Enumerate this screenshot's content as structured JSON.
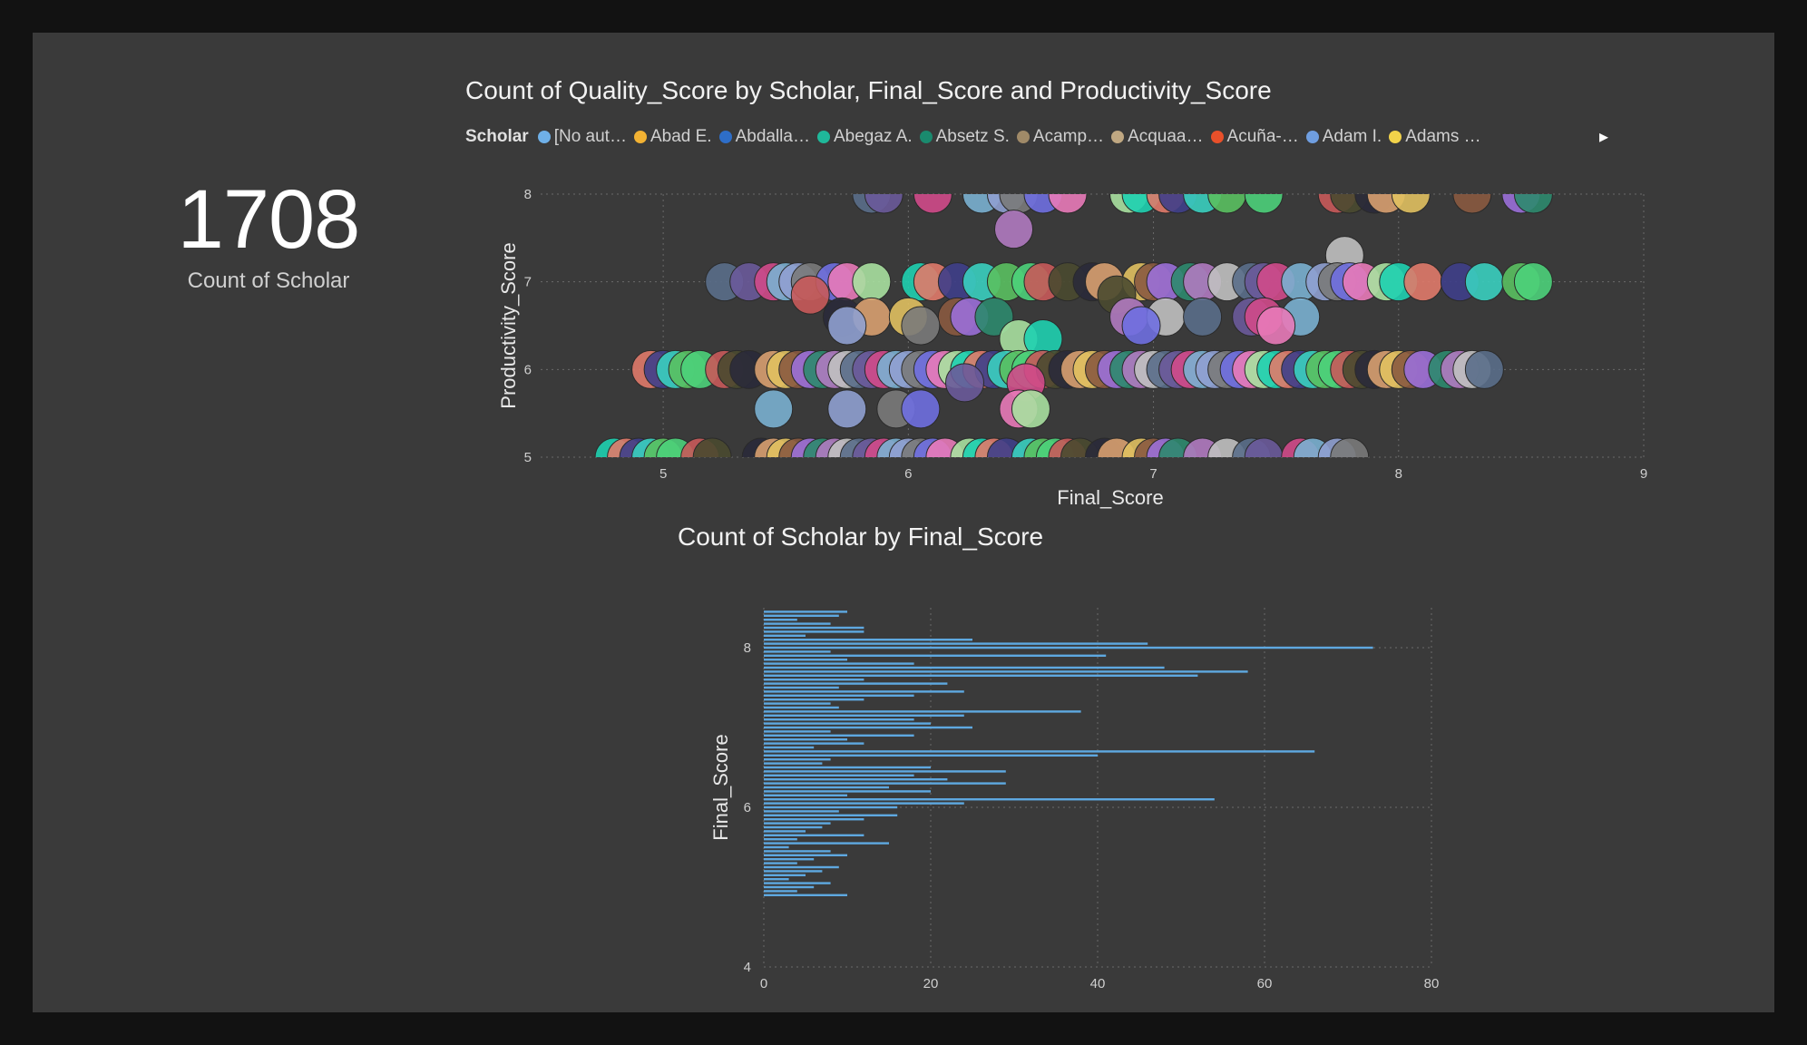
{
  "kpi": {
    "value": "1708",
    "label": "Count of Scholar"
  },
  "scatter": {
    "title": "Count of Quality_Score by Scholar, Final_Score and Productivity_Score",
    "legend_title": "Scholar",
    "legend_items": [
      {
        "label": "[No aut…",
        "color": "#6fb0e8"
      },
      {
        "label": "Abad E.",
        "color": "#f2b233"
      },
      {
        "label": "Abdalla…",
        "color": "#2e6ec8"
      },
      {
        "label": "Abegaz A.",
        "color": "#1fb89a"
      },
      {
        "label": "Absetz S.",
        "color": "#1a8a6e"
      },
      {
        "label": "Acamp…",
        "color": "#a08a68"
      },
      {
        "label": "Acquaa…",
        "color": "#c0a882"
      },
      {
        "label": "Acuña-…",
        "color": "#e8502a"
      },
      {
        "label": "Adam I.",
        "color": "#6f9ee0"
      },
      {
        "label": "Adams …",
        "color": "#f2d34a"
      }
    ],
    "next_icon": "chevron-right-icon"
  },
  "bars": {
    "title": "Count of Scholar by Final_Score"
  },
  "chart_data": [
    {
      "type": "scatter",
      "title": "Count of Quality_Score by Scholar, Final_Score and Productivity_Score",
      "xlabel": "Final_Score",
      "ylabel": "Productivity_Score",
      "xlim": [
        4.5,
        9
      ],
      "ylim": [
        5,
        8
      ],
      "xticks": [
        "5",
        "6",
        "7",
        "8",
        "9"
      ],
      "yticks": [
        "5",
        "6",
        "7",
        "8"
      ],
      "grid": true,
      "legend": "top",
      "palette": [
        "#9a6fd8",
        "#4dd07a",
        "#e87ab8",
        "#5a6e8a",
        "#d8a070",
        "#3f3f8a",
        "#8fa0d0",
        "#2e8a6e",
        "#c85a5a",
        "#a8e0a0",
        "#6a5a9a",
        "#e0c060",
        "#3acfbf",
        "#7a7a7a",
        "#b07ac0",
        "#4a4a30",
        "#1fd0b0",
        "#d04a8a",
        "#8a5a40",
        "#5ac060",
        "#6f6fe0",
        "#c0c0c0",
        "#2a2a3a",
        "#e07a6a",
        "#7ab0d0"
      ],
      "series": [
        {
          "y": 8,
          "x": [
            5.85,
            5.9,
            6.1,
            6.3,
            6.4,
            6.45,
            6.55,
            6.65,
            6.9,
            6.95,
            7.05,
            7.1,
            7.2,
            7.3,
            7.45,
            7.75,
            7.8,
            7.9,
            7.95,
            8.05,
            8.3,
            8.5,
            8.55
          ]
        },
        {
          "y": 7.6,
          "x": [
            6.43
          ]
        },
        {
          "y": 7.3,
          "x": [
            7.78
          ]
        },
        {
          "y": 7,
          "x": [
            5.25,
            5.35,
            5.45,
            5.5,
            5.55,
            5.6,
            5.7,
            5.75,
            5.85,
            6.05,
            6.1,
            6.2,
            6.3,
            6.4,
            6.5,
            6.55,
            6.65,
            6.75,
            6.8,
            6.95,
            7.0,
            7.05,
            7.15,
            7.2,
            7.3,
            7.4,
            7.45,
            7.5,
            7.6,
            7.7,
            7.75,
            7.8,
            7.85,
            7.95,
            8.0,
            8.1,
            8.25,
            8.35,
            8.5,
            8.55
          ]
        },
        {
          "y": 6.85,
          "x": [
            5.6,
            6.85
          ]
        },
        {
          "y": 6.6,
          "x": [
            5.73,
            5.85,
            6.0,
            6.2,
            6.25,
            6.35,
            6.9,
            7.05,
            7.2,
            7.4,
            7.45,
            7.6
          ]
        },
        {
          "y": 6.5,
          "x": [
            5.75,
            6.05,
            6.95,
            7.5
          ]
        },
        {
          "y": 6.35,
          "x": [
            6.45,
            6.55
          ]
        },
        {
          "y": 6,
          "x": [
            4.95,
            5.0,
            5.05,
            5.1,
            5.15,
            5.25,
            5.3,
            5.35,
            5.45,
            5.5,
            5.55,
            5.6,
            5.65,
            5.7,
            5.75,
            5.8,
            5.85,
            5.9,
            5.95,
            6.0,
            6.05,
            6.1,
            6.15,
            6.2,
            6.25,
            6.3,
            6.35,
            6.4,
            6.45,
            6.5,
            6.55,
            6.6,
            6.65,
            6.7,
            6.75,
            6.8,
            6.85,
            6.9,
            6.95,
            7.0,
            7.05,
            7.1,
            7.15,
            7.2,
            7.25,
            7.3,
            7.35,
            7.4,
            7.45,
            7.5,
            7.55,
            7.6,
            7.65,
            7.7,
            7.75,
            7.8,
            7.85,
            7.9,
            7.95,
            8.0,
            8.05,
            8.1,
            8.2,
            8.25,
            8.3,
            8.35
          ]
        },
        {
          "y": 5.85,
          "x": [
            6.23,
            6.48
          ]
        },
        {
          "y": 5.55,
          "x": [
            5.45,
            5.75,
            5.95,
            6.05,
            6.45,
            6.5
          ]
        },
        {
          "y": 5,
          "x": [
            4.8,
            4.85,
            4.9,
            4.95,
            5.0,
            5.05,
            5.15,
            5.2,
            5.4,
            5.45,
            5.5,
            5.55,
            5.6,
            5.65,
            5.7,
            5.75,
            5.8,
            5.85,
            5.9,
            5.95,
            6.0,
            6.05,
            6.1,
            6.15,
            6.25,
            6.3,
            6.35,
            6.4,
            6.5,
            6.55,
            6.6,
            6.65,
            6.7,
            6.8,
            6.85,
            6.95,
            7.0,
            7.05,
            7.1,
            7.2,
            7.3,
            7.4,
            7.45,
            7.6,
            7.65,
            7.75,
            7.8
          ]
        }
      ]
    },
    {
      "type": "bar",
      "orientation": "horizontal",
      "title": "Count of Scholar by Final_Score",
      "xlabel": "Count of Scholar",
      "ylabel": "Final_Score",
      "xlim": [
        0,
        80
      ],
      "ylim": [
        4,
        8.5
      ],
      "xticks": [
        "0",
        "20",
        "40",
        "60",
        "80"
      ],
      "yticks": [
        "4",
        "6",
        "8"
      ],
      "grid": true,
      "bar_color": "#5ea8e0",
      "categories": [
        8.45,
        8.4,
        8.35,
        8.3,
        8.25,
        8.2,
        8.15,
        8.1,
        8.05,
        8.0,
        7.95,
        7.9,
        7.85,
        7.8,
        7.75,
        7.7,
        7.65,
        7.6,
        7.55,
        7.5,
        7.45,
        7.4,
        7.35,
        7.3,
        7.25,
        7.2,
        7.15,
        7.1,
        7.05,
        7.0,
        6.95,
        6.9,
        6.85,
        6.8,
        6.75,
        6.7,
        6.65,
        6.6,
        6.55,
        6.5,
        6.45,
        6.4,
        6.35,
        6.3,
        6.25,
        6.2,
        6.15,
        6.1,
        6.05,
        6.0,
        5.95,
        5.9,
        5.85,
        5.8,
        5.75,
        5.7,
        5.65,
        5.6,
        5.55,
        5.5,
        5.45,
        5.4,
        5.35,
        5.3,
        5.25,
        5.2,
        5.15,
        5.1,
        5.05,
        5.0,
        4.95,
        4.9
      ],
      "values": [
        10,
        9,
        4,
        8,
        12,
        12,
        5,
        25,
        46,
        73,
        8,
        41,
        10,
        18,
        48,
        58,
        52,
        12,
        22,
        9,
        24,
        18,
        12,
        8,
        9,
        38,
        24,
        18,
        20,
        25,
        8,
        18,
        10,
        12,
        6,
        66,
        40,
        8,
        7,
        20,
        29,
        18,
        22,
        29,
        15,
        20,
        10,
        54,
        24,
        16,
        9,
        16,
        12,
        8,
        7,
        5,
        12,
        4,
        15,
        3,
        8,
        10,
        6,
        4,
        9,
        7,
        5,
        3,
        8,
        6,
        4,
        10
      ]
    }
  ]
}
